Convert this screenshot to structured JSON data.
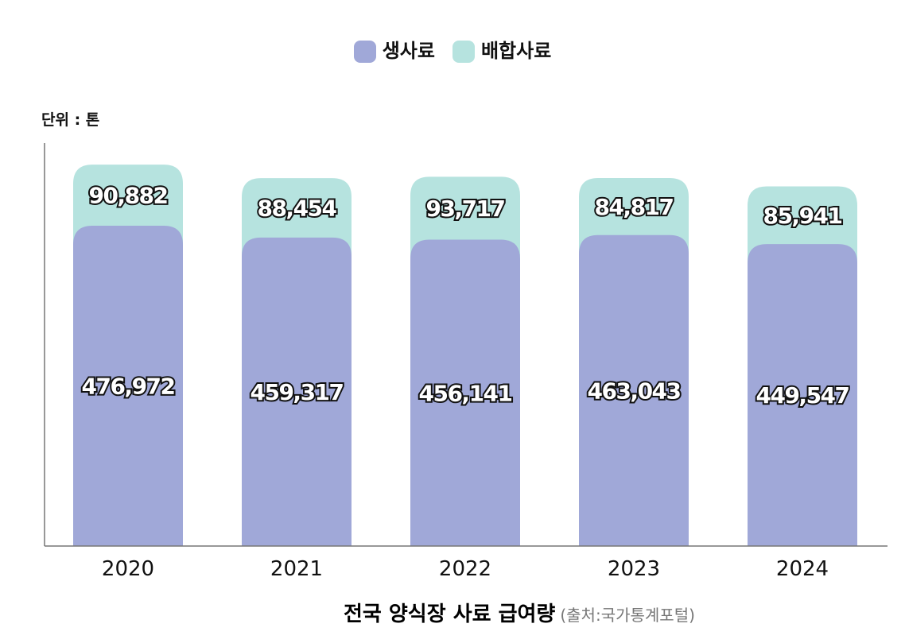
{
  "unit_label": "단위 : 톤",
  "caption": {
    "title": "전국 양식장 사료 급여량",
    "source": "(출처:국가통계포털)"
  },
  "colors": {
    "raw_feed": "#a0a8d8",
    "mixed_feed": "#b6e3df",
    "axis": "#777777"
  },
  "chart_data": {
    "type": "bar",
    "stacked": true,
    "categories": [
      "2020",
      "2021",
      "2022",
      "2023",
      "2024"
    ],
    "series": [
      {
        "name": "생사료",
        "values": [
          476972,
          459317,
          456141,
          463043,
          449547
        ]
      },
      {
        "name": "배합사료",
        "values": [
          90882,
          88454,
          93717,
          84817,
          85941
        ]
      }
    ],
    "data_labels": {
      "생사료": [
        "476,972",
        "459,317",
        "456,141",
        "463,043",
        "449,547"
      ],
      "배합사료": [
        "90,882",
        "88,454",
        "93,717",
        "84,817",
        "85,941"
      ]
    },
    "ylim": [
      0,
      600000
    ],
    "legend_position": "top-center",
    "grid": false
  }
}
